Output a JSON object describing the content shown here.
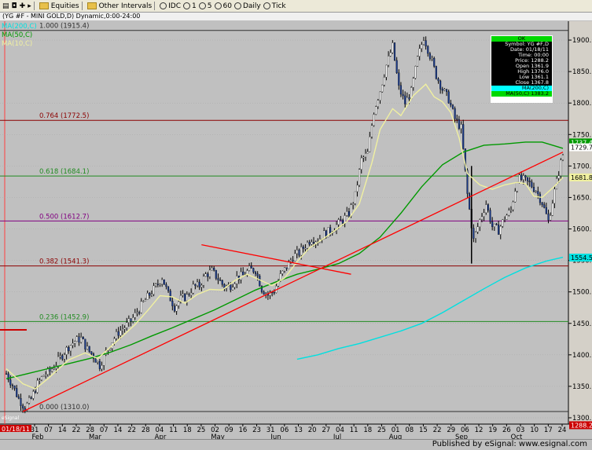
{
  "toolbar": {
    "items": [
      "Equities",
      "Other Intervals",
      "IDC",
      "1",
      "5",
      "60",
      "Daily",
      "Tick"
    ]
  },
  "header": {
    "title": "(YG #F - MINI GOLD,D) Dynamic,0:00-24:00",
    "ma_labels": [
      "MA(200,C)",
      "MA(50,C)",
      "MA(10,C)"
    ]
  },
  "footer": {
    "published": "Published by eSignal: www.esignal.com"
  },
  "popup": {
    "status": "OK",
    "rows": [
      "Symbol: YG #F,D",
      "Date: 01/18/11",
      "Time: 00:00",
      "Price: 1288.2",
      "Open 1361.9",
      "High 1376.0",
      "Low 1361.1",
      "Close 1367.8"
    ],
    "ma_rows": [
      "MA(200,C)",
      "MA(50,C) 1383.2"
    ]
  },
  "colors": {
    "background": "#c0c0c0",
    "up_bar": "#ffffff",
    "down_bar": "#1a3a8a",
    "ma10": "#f0f0a0",
    "ma50": "#009900",
    "ma200": "#00e0e0",
    "trendline": "#ff0000",
    "fib_line_red": "#8b0000",
    "fib_line_green": "#228b22",
    "fib_line_purple": "#800080"
  },
  "chart_data": {
    "type": "candlestick",
    "y_axis": {
      "min": 1290,
      "max": 1930,
      "ticks": [
        1300,
        1350,
        1400,
        1450,
        1500,
        1550,
        1600,
        1650,
        1700,
        1750,
        1800,
        1850,
        1900
      ],
      "tick_labels": [
        "1300.0",
        "1350.0",
        "1400.0",
        "1450.0",
        "1500.0",
        "1550.0",
        "1600.0",
        "1650.0",
        "1700.0",
        "1750.0",
        "1800.0",
        "1850.0",
        "1900.0"
      ]
    },
    "x_axis": {
      "left_label": "01/18/11",
      "day_labels": [
        "31",
        "07",
        "14",
        "22",
        "28",
        "07",
        "14",
        "22",
        "28",
        "04",
        "11",
        "18",
        "25",
        "02",
        "09",
        "16",
        "23",
        "31",
        "06",
        "13",
        "20",
        "27",
        "04",
        "11",
        "18",
        "25",
        "01",
        "08",
        "15",
        "22",
        "29",
        "06",
        "12",
        "19",
        "26",
        "03",
        "10",
        "17",
        "24"
      ],
      "month_labels": [
        "Feb",
        "Mar",
        "Apr",
        "May",
        "Jun",
        "Jul",
        "Aug",
        "Sep",
        "Oct"
      ]
    },
    "fib_levels": [
      {
        "label": "1.000 (1915.4)",
        "value": 1915.4,
        "color": "#303030"
      },
      {
        "label": "0.764 (1772.5)",
        "value": 1772.5,
        "color": "#8b0000"
      },
      {
        "label": "0.618 (1684.1)",
        "value": 1684.1,
        "color": "#228b22"
      },
      {
        "label": "0.500 (1612.7)",
        "value": 1612.7,
        "color": "#800080"
      },
      {
        "label": "0.382 (1541.3)",
        "value": 1541.3,
        "color": "#8b0000"
      },
      {
        "label": "0.236 (1452.9)",
        "value": 1452.9,
        "color": "#228b22"
      },
      {
        "label": "0.000 (1310.0)",
        "value": 1310.0,
        "color": "#303030"
      }
    ],
    "price_tags": [
      {
        "value": 1737.4,
        "label": "1737.4",
        "bg": "#009900",
        "fg": "#ffffff"
      },
      {
        "value": 1729.7,
        "label": "1729.7",
        "bg": "#ffffff",
        "fg": "#000000"
      },
      {
        "value": 1681.8,
        "label": "1681.8",
        "bg": "#f0f0a0",
        "fg": "#000000"
      },
      {
        "value": 1554.5,
        "label": "1554.5",
        "bg": "#00e0e0",
        "fg": "#000000"
      },
      {
        "value": 1288.2,
        "label": "1288.2",
        "bg": "#cc0000",
        "fg": "#ffffff"
      }
    ],
    "series": [
      {
        "name": "MA(200,C)",
        "color": "#00e0e0",
        "points": [
          [
            140,
            1393
          ],
          [
            150,
            1400
          ],
          [
            160,
            1410
          ],
          [
            170,
            1418
          ],
          [
            180,
            1428
          ],
          [
            190,
            1438
          ],
          [
            200,
            1450
          ],
          [
            210,
            1467
          ],
          [
            220,
            1486
          ],
          [
            230,
            1505
          ],
          [
            240,
            1523
          ],
          [
            250,
            1538
          ],
          [
            260,
            1549
          ],
          [
            268,
            1555
          ]
        ]
      },
      {
        "name": "MA(50,C)",
        "color": "#009900",
        "points": [
          [
            0,
            1362
          ],
          [
            10,
            1370
          ],
          [
            20,
            1378
          ],
          [
            30,
            1386
          ],
          [
            40,
            1394
          ],
          [
            50,
            1404
          ],
          [
            60,
            1416
          ],
          [
            70,
            1430
          ],
          [
            80,
            1443
          ],
          [
            90,
            1457
          ],
          [
            100,
            1471
          ],
          [
            110,
            1487
          ],
          [
            120,
            1503
          ],
          [
            130,
            1516
          ],
          [
            140,
            1528
          ],
          [
            150,
            1536
          ],
          [
            160,
            1545
          ],
          [
            170,
            1561
          ],
          [
            180,
            1587
          ],
          [
            190,
            1625
          ],
          [
            200,
            1667
          ],
          [
            210,
            1702
          ],
          [
            220,
            1722
          ],
          [
            230,
            1733
          ],
          [
            240,
            1735
          ],
          [
            250,
            1738
          ],
          [
            258,
            1738
          ],
          [
            264,
            1732
          ],
          [
            268,
            1728
          ]
        ]
      },
      {
        "name": "MA(10,C)",
        "color": "#f0f0a0",
        "points": [
          [
            0,
            1378
          ],
          [
            8,
            1354
          ],
          [
            14,
            1346
          ],
          [
            20,
            1362
          ],
          [
            30,
            1392
          ],
          [
            38,
            1403
          ],
          [
            44,
            1394
          ],
          [
            50,
            1412
          ],
          [
            56,
            1430
          ],
          [
            62,
            1448
          ],
          [
            68,
            1470
          ],
          [
            74,
            1494
          ],
          [
            80,
            1492
          ],
          [
            86,
            1482
          ],
          [
            92,
            1496
          ],
          [
            98,
            1504
          ],
          [
            104,
            1503
          ],
          [
            110,
            1518
          ],
          [
            116,
            1528
          ],
          [
            122,
            1519
          ],
          [
            128,
            1510
          ],
          [
            134,
            1522
          ],
          [
            140,
            1548
          ],
          [
            146,
            1570
          ],
          [
            152,
            1583
          ],
          [
            158,
            1597
          ],
          [
            164,
            1612
          ],
          [
            170,
            1640
          ],
          [
            176,
            1705
          ],
          [
            180,
            1758
          ],
          [
            186,
            1791
          ],
          [
            190,
            1780
          ],
          [
            196,
            1812
          ],
          [
            202,
            1830
          ],
          [
            206,
            1810
          ],
          [
            210,
            1802
          ],
          [
            214,
            1785
          ],
          [
            218,
            1745
          ],
          [
            222,
            1688
          ],
          [
            228,
            1670
          ],
          [
            234,
            1663
          ],
          [
            240,
            1670
          ],
          [
            246,
            1674
          ],
          [
            250,
            1672
          ],
          [
            254,
            1652
          ],
          [
            258,
            1650
          ],
          [
            264,
            1668
          ],
          [
            268,
            1682
          ]
        ]
      },
      {
        "name": "trendline-1",
        "color": "#ff0000",
        "points": [
          [
            8,
            1310
          ],
          [
            268,
            1722
          ]
        ]
      },
      {
        "name": "trendline-2",
        "color": "#ff0000",
        "points": [
          [
            94,
            1575
          ],
          [
            166,
            1528
          ]
        ]
      }
    ],
    "price_path": [
      [
        0,
        1370
      ],
      [
        3,
        1352
      ],
      [
        6,
        1330
      ],
      [
        9,
        1316
      ],
      [
        12,
        1330
      ],
      [
        15,
        1354
      ],
      [
        18,
        1368
      ],
      [
        21,
        1374
      ],
      [
        24,
        1386
      ],
      [
        27,
        1400
      ],
      [
        30,
        1413
      ],
      [
        33,
        1422
      ],
      [
        36,
        1426
      ],
      [
        39,
        1409
      ],
      [
        42,
        1398
      ],
      [
        45,
        1383
      ],
      [
        48,
        1404
      ],
      [
        51,
        1422
      ],
      [
        54,
        1436
      ],
      [
        57,
        1444
      ],
      [
        60,
        1454
      ],
      [
        63,
        1468
      ],
      [
        66,
        1483
      ],
      [
        69,
        1496
      ],
      [
        72,
        1508
      ],
      [
        75,
        1523
      ],
      [
        78,
        1496
      ],
      [
        81,
        1476
      ],
      [
        84,
        1489
      ],
      [
        87,
        1493
      ],
      [
        90,
        1508
      ],
      [
        93,
        1510
      ],
      [
        96,
        1527
      ],
      [
        99,
        1533
      ],
      [
        102,
        1521
      ],
      [
        105,
        1508
      ],
      [
        108,
        1510
      ],
      [
        111,
        1523
      ],
      [
        114,
        1526
      ],
      [
        117,
        1535
      ],
      [
        120,
        1535
      ],
      [
        123,
        1505
      ],
      [
        126,
        1495
      ],
      [
        129,
        1502
      ],
      [
        132,
        1525
      ],
      [
        135,
        1540
      ],
      [
        138,
        1556
      ],
      [
        141,
        1562
      ],
      [
        144,
        1574
      ],
      [
        147,
        1585
      ],
      [
        150,
        1582
      ],
      [
        153,
        1592
      ],
      [
        156,
        1597
      ],
      [
        159,
        1606
      ],
      [
        162,
        1614
      ],
      [
        165,
        1625
      ],
      [
        168,
        1653
      ],
      [
        171,
        1710
      ],
      [
        174,
        1720
      ],
      [
        177,
        1787
      ],
      [
        180,
        1820
      ],
      [
        183,
        1860
      ],
      [
        186,
        1890
      ],
      [
        189,
        1824
      ],
      [
        192,
        1800
      ],
      [
        195,
        1818
      ],
      [
        198,
        1870
      ],
      [
        201,
        1905
      ],
      [
        204,
        1876
      ],
      [
        207,
        1844
      ],
      [
        210,
        1822
      ],
      [
        213,
        1806
      ],
      [
        216,
        1775
      ],
      [
        219,
        1760
      ],
      [
        222,
        1655
      ],
      [
        225,
        1582
      ],
      [
        228,
        1614
      ],
      [
        231,
        1640
      ],
      [
        234,
        1604
      ],
      [
        237,
        1598
      ],
      [
        240,
        1618
      ],
      [
        243,
        1630
      ],
      [
        246,
        1680
      ],
      [
        249,
        1678
      ],
      [
        252,
        1672
      ],
      [
        255,
        1662
      ],
      [
        258,
        1642
      ],
      [
        261,
        1612
      ],
      [
        264,
        1660
      ],
      [
        267,
        1705
      ],
      [
        268,
        1718
      ]
    ]
  }
}
